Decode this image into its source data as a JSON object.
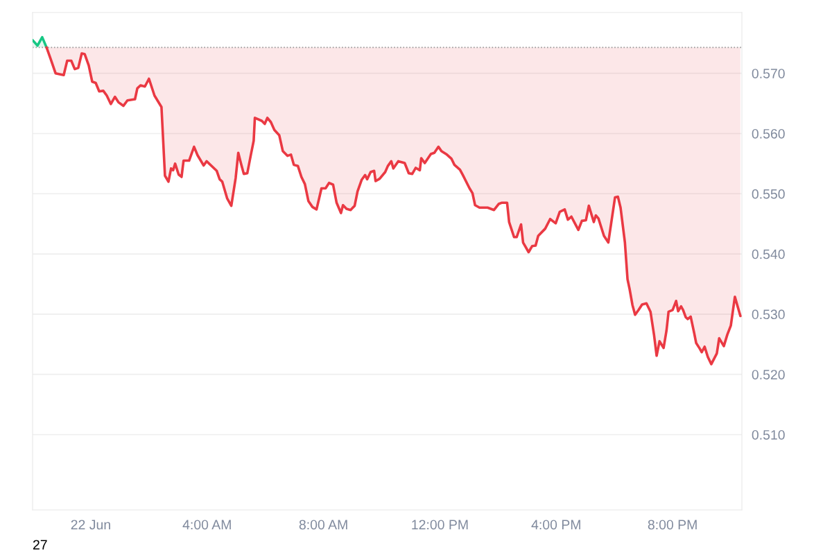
{
  "chart_data": {
    "type": "line",
    "series": [
      {
        "color": "#16c784",
        "x": [
          -2.0,
          -1.83,
          -1.67,
          -1.52
        ],
        "values": [
          0.5755,
          0.5746,
          0.576,
          0.5743
        ]
      },
      {
        "color": "#ea3943",
        "x": [
          -1.52,
          -1.38,
          -1.21,
          -0.93,
          -0.81,
          -0.67,
          -0.55,
          -0.43,
          -0.31,
          -0.21,
          -0.07,
          0.05,
          0.17,
          0.29,
          0.43,
          0.55,
          0.69,
          0.83,
          0.95,
          1.12,
          1.26,
          1.52,
          1.6,
          1.71,
          1.86,
          2.0,
          2.19,
          2.43,
          2.55,
          2.67,
          2.76,
          2.83,
          2.9,
          3.02,
          3.12,
          3.19,
          3.38,
          3.55,
          3.67,
          3.88,
          3.98,
          4.33,
          4.43,
          4.52,
          4.69,
          4.83,
          4.98,
          5.07,
          5.17,
          5.26,
          5.38,
          5.5,
          5.6,
          5.64,
          5.88,
          5.98,
          6.07,
          6.19,
          6.31,
          6.48,
          6.6,
          6.76,
          6.88,
          6.98,
          7.12,
          7.24,
          7.36,
          7.48,
          7.62,
          7.76,
          7.93,
          8.07,
          8.19,
          8.33,
          8.45,
          8.6,
          8.67,
          8.79,
          8.93,
          9.07,
          9.17,
          9.31,
          9.43,
          9.5,
          9.62,
          9.74,
          9.79,
          9.93,
          10.12,
          10.21,
          10.33,
          10.4,
          10.57,
          10.79,
          10.93,
          11.05,
          11.17,
          11.31,
          11.36,
          11.48,
          11.69,
          11.81,
          11.95,
          12.05,
          12.24,
          12.4,
          12.5,
          12.69,
          12.79,
          13.02,
          13.12,
          13.21,
          13.36,
          13.64,
          13.86,
          14.02,
          14.12,
          14.31,
          14.38,
          14.55,
          14.64,
          14.79,
          14.86,
          15.05,
          15.17,
          15.29,
          15.38,
          15.62,
          15.79,
          15.98,
          16.12,
          16.29,
          16.4,
          16.52,
          16.64,
          16.76,
          16.88,
          17.02,
          17.12,
          17.29,
          17.36,
          17.45,
          17.64,
          17.79,
          18.02,
          18.12,
          18.21,
          18.36,
          18.45,
          18.52,
          18.62,
          18.71,
          18.83,
          18.95,
          19.1,
          19.24,
          19.36,
          19.45,
          19.55,
          19.69,
          19.79,
          19.86,
          20.0,
          20.12,
          20.19,
          20.29,
          20.36,
          20.45,
          20.52,
          20.62,
          20.74,
          20.81,
          20.93,
          21.0,
          21.1,
          21.21,
          21.33,
          21.52,
          21.6,
          21.76,
          21.88,
          22.0,
          22.14,
          22.24,
          22.33
        ],
        "values": [
          0.5743,
          0.5724,
          0.57,
          0.5697,
          0.5721,
          0.5721,
          0.5707,
          0.5709,
          0.5733,
          0.5732,
          0.5713,
          0.5686,
          0.5684,
          0.567,
          0.5671,
          0.5663,
          0.5649,
          0.5661,
          0.5652,
          0.5646,
          0.5655,
          0.5657,
          0.5675,
          0.568,
          0.5678,
          0.5691,
          0.5663,
          0.5644,
          0.553,
          0.552,
          0.5542,
          0.5539,
          0.555,
          0.5532,
          0.5528,
          0.5555,
          0.5555,
          0.5578,
          0.5564,
          0.5547,
          0.5554,
          0.5538,
          0.5524,
          0.552,
          0.5492,
          0.548,
          0.5526,
          0.5568,
          0.5549,
          0.5533,
          0.5534,
          0.5564,
          0.5588,
          0.5626,
          0.5621,
          0.5616,
          0.5626,
          0.5619,
          0.5606,
          0.5597,
          0.5571,
          0.5563,
          0.5565,
          0.5548,
          0.5546,
          0.5528,
          0.5516,
          0.5488,
          0.5478,
          0.5474,
          0.5509,
          0.5509,
          0.5518,
          0.5515,
          0.5485,
          0.5468,
          0.5481,
          0.5475,
          0.5473,
          0.548,
          0.5504,
          0.5523,
          0.5531,
          0.5524,
          0.5536,
          0.5538,
          0.5521,
          0.5525,
          0.5536,
          0.5546,
          0.5554,
          0.5542,
          0.5554,
          0.5551,
          0.5534,
          0.5533,
          0.5543,
          0.5539,
          0.5559,
          0.5551,
          0.5566,
          0.5568,
          0.5578,
          0.5571,
          0.5565,
          0.5558,
          0.5548,
          0.554,
          0.5531,
          0.5509,
          0.5501,
          0.5481,
          0.5477,
          0.5477,
          0.5473,
          0.5483,
          0.5485,
          0.5485,
          0.5453,
          0.5428,
          0.5428,
          0.5449,
          0.5419,
          0.5403,
          0.5413,
          0.5414,
          0.543,
          0.5442,
          0.5458,
          0.5451,
          0.547,
          0.5474,
          0.5457,
          0.5462,
          0.5451,
          0.544,
          0.5455,
          0.5456,
          0.548,
          0.5453,
          0.5464,
          0.5459,
          0.543,
          0.5419,
          0.5494,
          0.5495,
          0.5477,
          0.5419,
          0.5358,
          0.5342,
          0.5315,
          0.5299,
          0.5307,
          0.5316,
          0.5318,
          0.5304,
          0.5266,
          0.5231,
          0.5255,
          0.5244,
          0.5273,
          0.5304,
          0.5307,
          0.5322,
          0.5305,
          0.5313,
          0.5307,
          0.5295,
          0.5292,
          0.5296,
          0.5269,
          0.5252,
          0.5243,
          0.5237,
          0.5246,
          0.5229,
          0.5217,
          0.5235,
          0.526,
          0.5247,
          0.5266,
          0.5281,
          0.5329,
          0.5312,
          0.5297
        ]
      }
    ],
    "xlim": [
      -2.0,
      22.38
    ],
    "xticks": [
      {
        "value": 0,
        "label": "22 Jun"
      },
      {
        "value": 4,
        "label": "4:00 AM"
      },
      {
        "value": 8,
        "label": "8:00 AM"
      },
      {
        "value": 12,
        "label": "12:00 PM"
      },
      {
        "value": 16,
        "label": "4:00 PM"
      },
      {
        "value": 20,
        "label": "8:00 PM"
      }
    ],
    "ylim": [
      0.4975,
      0.5801
    ],
    "yticks": [
      {
        "value": 0.51,
        "label": "0.510"
      },
      {
        "value": 0.52,
        "label": "0.520"
      },
      {
        "value": 0.53,
        "label": "0.530"
      },
      {
        "value": 0.54,
        "label": "0.540"
      },
      {
        "value": 0.55,
        "label": "0.550"
      },
      {
        "value": 0.56,
        "label": "0.560"
      },
      {
        "value": 0.57,
        "label": "0.570"
      }
    ],
    "ref_lines": [
      {
        "axis": "y",
        "value": 0.5743,
        "color": "#999999",
        "line_style": "dotted"
      }
    ],
    "grid": "y",
    "annotations": [
      "27"
    ]
  }
}
